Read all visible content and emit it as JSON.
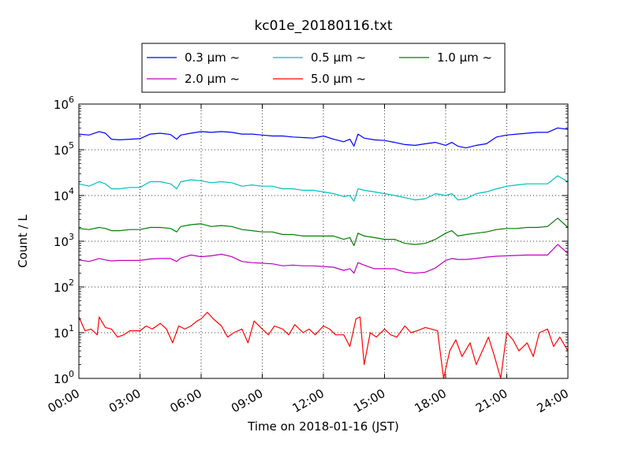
{
  "chart_data": {
    "type": "line",
    "title": "kc01e_20180116.txt",
    "xlabel": "Time on 2018-01-16 (JST)",
    "ylabel": "Count / L",
    "xlim": [
      0,
      24
    ],
    "ylim": [
      1,
      1000000
    ],
    "yscale": "log",
    "grid": true,
    "legend_position": "top",
    "x_tick_labels": [
      "00:00",
      "03:00",
      "06:00",
      "09:00",
      "12:00",
      "15:00",
      "18:00",
      "21:00",
      "24:00"
    ],
    "y_tick_labels": [
      {
        "base": "10",
        "exp": "0"
      },
      {
        "base": "10",
        "exp": "1"
      },
      {
        "base": "10",
        "exp": "2"
      },
      {
        "base": "10",
        "exp": "3"
      },
      {
        "base": "10",
        "exp": "4"
      },
      {
        "base": "10",
        "exp": "5"
      },
      {
        "base": "10",
        "exp": "6"
      }
    ],
    "series": [
      {
        "name": "0.3 μm ~",
        "color": "#0000ff",
        "points": [
          [
            0,
            220000
          ],
          [
            0.5,
            210000
          ],
          [
            1,
            250000
          ],
          [
            1.3,
            230000
          ],
          [
            1.6,
            170000
          ],
          [
            2,
            165000
          ],
          [
            2.5,
            170000
          ],
          [
            3,
            175000
          ],
          [
            3.5,
            220000
          ],
          [
            4,
            230000
          ],
          [
            4.5,
            215000
          ],
          [
            4.8,
            170000
          ],
          [
            5,
            210000
          ],
          [
            5.5,
            230000
          ],
          [
            6,
            250000
          ],
          [
            6.5,
            240000
          ],
          [
            7,
            250000
          ],
          [
            7.5,
            240000
          ],
          [
            8,
            220000
          ],
          [
            8.5,
            220000
          ],
          [
            9,
            210000
          ],
          [
            9.5,
            200000
          ],
          [
            10,
            200000
          ],
          [
            10.5,
            190000
          ],
          [
            11,
            185000
          ],
          [
            11.5,
            180000
          ],
          [
            12,
            200000
          ],
          [
            12.5,
            170000
          ],
          [
            13,
            150000
          ],
          [
            13.3,
            170000
          ],
          [
            13.5,
            120000
          ],
          [
            13.7,
            220000
          ],
          [
            14,
            180000
          ],
          [
            14.5,
            165000
          ],
          [
            15,
            160000
          ],
          [
            15.5,
            145000
          ],
          [
            16,
            130000
          ],
          [
            16.5,
            125000
          ],
          [
            17,
            135000
          ],
          [
            17.5,
            145000
          ],
          [
            18,
            125000
          ],
          [
            18.3,
            145000
          ],
          [
            18.6,
            120000
          ],
          [
            19,
            110000
          ],
          [
            19.5,
            125000
          ],
          [
            20,
            135000
          ],
          [
            20.5,
            190000
          ],
          [
            21,
            210000
          ],
          [
            21.5,
            220000
          ],
          [
            22,
            230000
          ],
          [
            22.5,
            240000
          ],
          [
            23,
            240000
          ],
          [
            23.5,
            300000
          ],
          [
            24,
            280000
          ]
        ]
      },
      {
        "name": "0.5 μm ~",
        "color": "#00bfbf",
        "points": [
          [
            0,
            18000
          ],
          [
            0.5,
            16000
          ],
          [
            1,
            20000
          ],
          [
            1.3,
            18000
          ],
          [
            1.6,
            14000
          ],
          [
            2,
            14000
          ],
          [
            2.5,
            15000
          ],
          [
            3,
            15000
          ],
          [
            3.5,
            20000
          ],
          [
            4,
            20000
          ],
          [
            4.5,
            18000
          ],
          [
            4.8,
            14000
          ],
          [
            5,
            20000
          ],
          [
            5.5,
            22000
          ],
          [
            6,
            21000
          ],
          [
            6.5,
            19000
          ],
          [
            7,
            20000
          ],
          [
            7.5,
            19000
          ],
          [
            8,
            16000
          ],
          [
            8.5,
            17000
          ],
          [
            9,
            16000
          ],
          [
            9.5,
            16000
          ],
          [
            10,
            14000
          ],
          [
            10.5,
            14000
          ],
          [
            11,
            13000
          ],
          [
            11.5,
            13000
          ],
          [
            12,
            12000
          ],
          [
            12.5,
            11000
          ],
          [
            13,
            9500
          ],
          [
            13.3,
            10000
          ],
          [
            13.5,
            7500
          ],
          [
            13.7,
            14000
          ],
          [
            14,
            13000
          ],
          [
            14.5,
            12000
          ],
          [
            15,
            11000
          ],
          [
            15.5,
            10000
          ],
          [
            16,
            9000
          ],
          [
            16.5,
            8000
          ],
          [
            17,
            8500
          ],
          [
            17.5,
            11000
          ],
          [
            18,
            10000
          ],
          [
            18.3,
            11000
          ],
          [
            18.6,
            8000
          ],
          [
            19,
            8500
          ],
          [
            19.5,
            11000
          ],
          [
            20,
            12000
          ],
          [
            20.5,
            14000
          ],
          [
            21,
            16000
          ],
          [
            21.5,
            17000
          ],
          [
            22,
            18000
          ],
          [
            22.5,
            18000
          ],
          [
            23,
            18000
          ],
          [
            23.5,
            27000
          ],
          [
            24,
            20000
          ]
        ]
      },
      {
        "name": "1.0 μm ~",
        "color": "#008000",
        "points": [
          [
            0,
            1900
          ],
          [
            0.5,
            1800
          ],
          [
            1,
            2000
          ],
          [
            1.3,
            1900
          ],
          [
            1.6,
            1700
          ],
          [
            2,
            1700
          ],
          [
            2.5,
            1800
          ],
          [
            3,
            1800
          ],
          [
            3.5,
            2000
          ],
          [
            4,
            2000
          ],
          [
            4.5,
            1900
          ],
          [
            4.8,
            1600
          ],
          [
            5,
            2100
          ],
          [
            5.5,
            2300
          ],
          [
            6,
            2400
          ],
          [
            6.5,
            2100
          ],
          [
            7,
            2200
          ],
          [
            7.5,
            2100
          ],
          [
            8,
            1800
          ],
          [
            8.5,
            1700
          ],
          [
            9,
            1600
          ],
          [
            9.5,
            1600
          ],
          [
            10,
            1400
          ],
          [
            10.5,
            1400
          ],
          [
            11,
            1300
          ],
          [
            11.5,
            1300
          ],
          [
            12,
            1300
          ],
          [
            12.5,
            1300
          ],
          [
            13,
            1100
          ],
          [
            13.3,
            1200
          ],
          [
            13.5,
            800
          ],
          [
            13.7,
            1500
          ],
          [
            14,
            1300
          ],
          [
            14.5,
            1200
          ],
          [
            15,
            1100
          ],
          [
            15.5,
            1100
          ],
          [
            16,
            900
          ],
          [
            16.5,
            850
          ],
          [
            17,
            900
          ],
          [
            17.5,
            1100
          ],
          [
            18,
            1500
          ],
          [
            18.3,
            1700
          ],
          [
            18.6,
            1300
          ],
          [
            19,
            1400
          ],
          [
            19.5,
            1500
          ],
          [
            20,
            1600
          ],
          [
            20.5,
            1800
          ],
          [
            21,
            1900
          ],
          [
            21.5,
            1900
          ],
          [
            22,
            2000
          ],
          [
            22.5,
            2000
          ],
          [
            23,
            2100
          ],
          [
            23.5,
            3200
          ],
          [
            24,
            2000
          ]
        ]
      },
      {
        "name": "2.0 μm ~",
        "color": "#bf00bf",
        "points": [
          [
            0,
            390
          ],
          [
            0.5,
            360
          ],
          [
            1,
            420
          ],
          [
            1.3,
            390
          ],
          [
            1.6,
            370
          ],
          [
            2,
            380
          ],
          [
            2.5,
            380
          ],
          [
            3,
            380
          ],
          [
            3.5,
            410
          ],
          [
            4,
            420
          ],
          [
            4.5,
            420
          ],
          [
            4.8,
            360
          ],
          [
            5,
            430
          ],
          [
            5.5,
            500
          ],
          [
            6,
            460
          ],
          [
            6.5,
            480
          ],
          [
            7,
            520
          ],
          [
            7.5,
            460
          ],
          [
            8,
            360
          ],
          [
            8.5,
            340
          ],
          [
            9,
            330
          ],
          [
            9.5,
            320
          ],
          [
            10,
            290
          ],
          [
            10.5,
            300
          ],
          [
            11,
            290
          ],
          [
            11.5,
            290
          ],
          [
            12,
            280
          ],
          [
            12.5,
            270
          ],
          [
            13,
            230
          ],
          [
            13.3,
            250
          ],
          [
            13.5,
            200
          ],
          [
            13.7,
            340
          ],
          [
            14,
            300
          ],
          [
            14.5,
            250
          ],
          [
            15,
            250
          ],
          [
            15.5,
            250
          ],
          [
            16,
            210
          ],
          [
            16.5,
            200
          ],
          [
            17,
            210
          ],
          [
            17.5,
            260
          ],
          [
            18,
            380
          ],
          [
            18.3,
            420
          ],
          [
            18.6,
            400
          ],
          [
            19,
            400
          ],
          [
            19.5,
            420
          ],
          [
            20,
            450
          ],
          [
            20.5,
            470
          ],
          [
            21,
            480
          ],
          [
            21.5,
            490
          ],
          [
            22,
            500
          ],
          [
            22.5,
            500
          ],
          [
            23,
            500
          ],
          [
            23.5,
            850
          ],
          [
            24,
            540
          ]
        ]
      },
      {
        "name": "5.0 μm ~",
        "color": "#ff0000",
        "points": [
          [
            0,
            22
          ],
          [
            0.3,
            11
          ],
          [
            0.6,
            12
          ],
          [
            0.9,
            9
          ],
          [
            1,
            22
          ],
          [
            1.3,
            13
          ],
          [
            1.6,
            12
          ],
          [
            1.9,
            8
          ],
          [
            2.2,
            9
          ],
          [
            2.5,
            11
          ],
          [
            3,
            11
          ],
          [
            3.3,
            14
          ],
          [
            3.6,
            12
          ],
          [
            4,
            16
          ],
          [
            4.3,
            12
          ],
          [
            4.6,
            6
          ],
          [
            4.9,
            14
          ],
          [
            5.2,
            12
          ],
          [
            5.5,
            14
          ],
          [
            5.8,
            18
          ],
          [
            6,
            20
          ],
          [
            6.3,
            28
          ],
          [
            6.6,
            20
          ],
          [
            7,
            14
          ],
          [
            7.3,
            8
          ],
          [
            7.6,
            10
          ],
          [
            8,
            12
          ],
          [
            8.3,
            6
          ],
          [
            8.6,
            18
          ],
          [
            9,
            12
          ],
          [
            9.3,
            9
          ],
          [
            9.6,
            14
          ],
          [
            10,
            12
          ],
          [
            10.3,
            9
          ],
          [
            10.6,
            15
          ],
          [
            11,
            10
          ],
          [
            11.3,
            12
          ],
          [
            11.6,
            9
          ],
          [
            12,
            14
          ],
          [
            12.3,
            12
          ],
          [
            12.6,
            9
          ],
          [
            13,
            9
          ],
          [
            13.3,
            5
          ],
          [
            13.6,
            20
          ],
          [
            13.8,
            22
          ],
          [
            14,
            2
          ],
          [
            14.3,
            10
          ],
          [
            14.6,
            8
          ],
          [
            15,
            12
          ],
          [
            15.3,
            9
          ],
          [
            15.6,
            8
          ],
          [
            16,
            14
          ],
          [
            16.3,
            10
          ],
          [
            16.6,
            11
          ],
          [
            17,
            13
          ],
          [
            17.3,
            12
          ],
          [
            17.6,
            11
          ],
          [
            17.9,
            1
          ],
          [
            18.2,
            4
          ],
          [
            18.5,
            7
          ],
          [
            18.8,
            3
          ],
          [
            19.2,
            6
          ],
          [
            19.5,
            2
          ],
          [
            19.8,
            4
          ],
          [
            20.1,
            8
          ],
          [
            20.4,
            3
          ],
          [
            20.7,
            1
          ],
          [
            21,
            10
          ],
          [
            21.3,
            7
          ],
          [
            21.6,
            4
          ],
          [
            22,
            6
          ],
          [
            22.3,
            3
          ],
          [
            22.6,
            10
          ],
          [
            23,
            12
          ],
          [
            23.3,
            5
          ],
          [
            23.6,
            8
          ],
          [
            24,
            4
          ]
        ]
      }
    ]
  }
}
